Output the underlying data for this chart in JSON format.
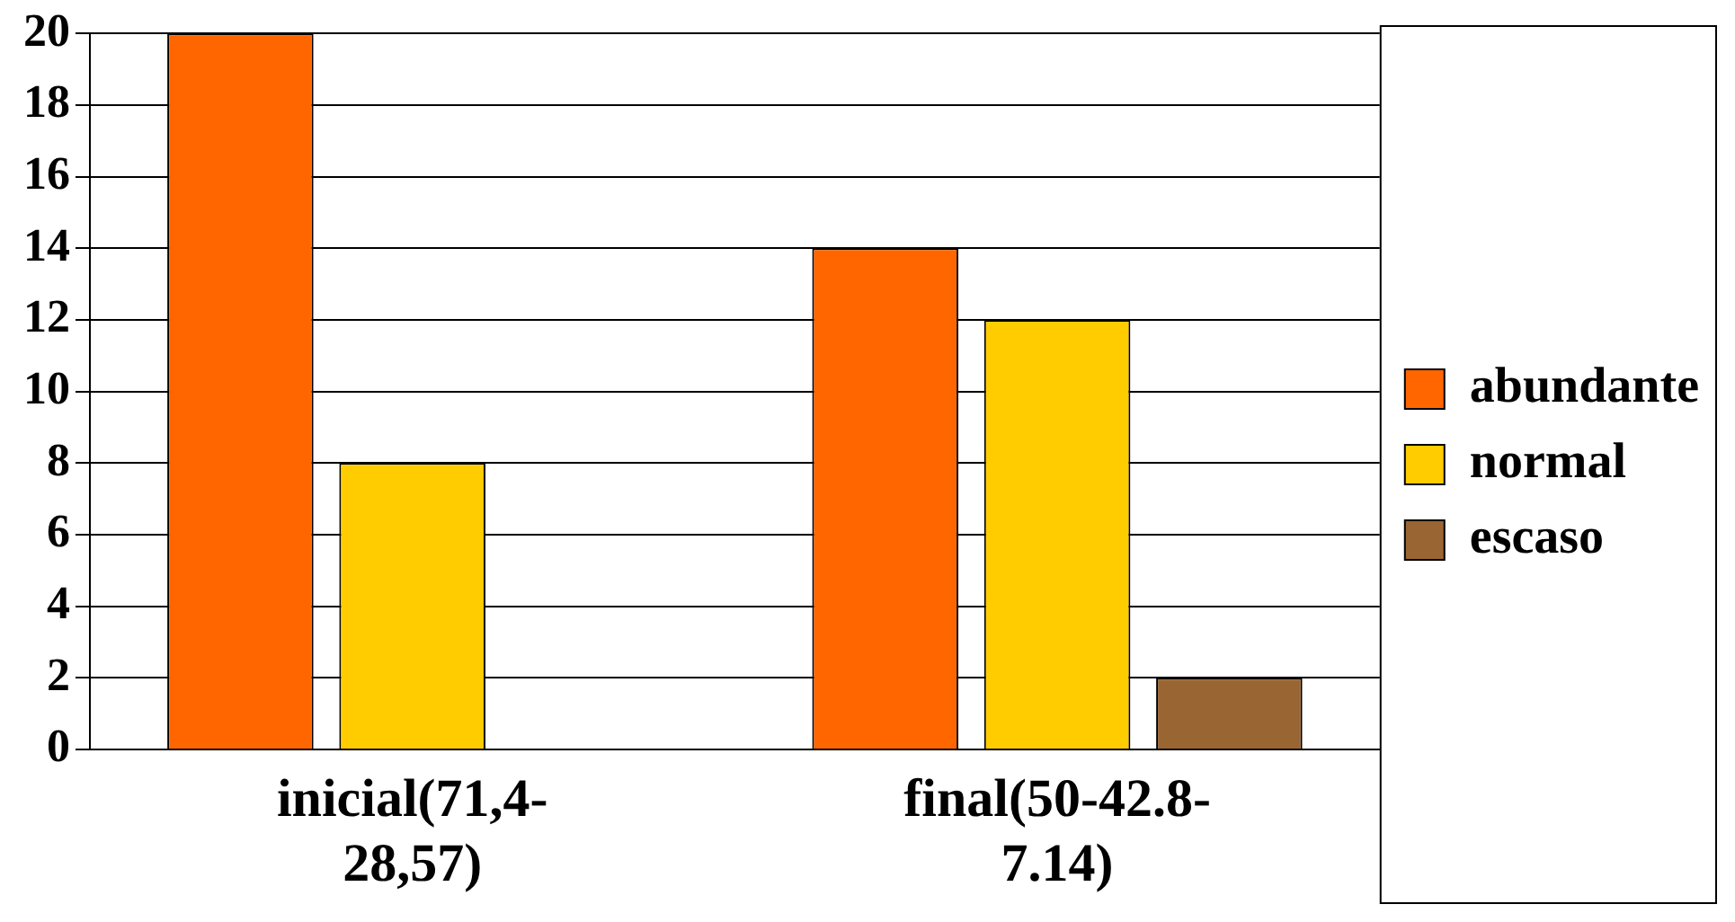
{
  "chart_data": {
    "type": "bar",
    "categories": [
      "inicial(71,4-28,57)",
      "final(50-42.8-7.14)"
    ],
    "series": [
      {
        "name": "abundante",
        "color": "#ff6600",
        "values": [
          20,
          14
        ]
      },
      {
        "name": "normal",
        "color": "#ffcc00",
        "values": [
          8,
          12
        ]
      },
      {
        "name": "escaso",
        "color": "#996633",
        "values": [
          0,
          2
        ]
      }
    ],
    "ylim": [
      0,
      20
    ],
    "yticks": [
      0,
      2,
      4,
      6,
      8,
      10,
      12,
      14,
      16,
      18,
      20
    ],
    "grid": "y",
    "legend": "right"
  }
}
